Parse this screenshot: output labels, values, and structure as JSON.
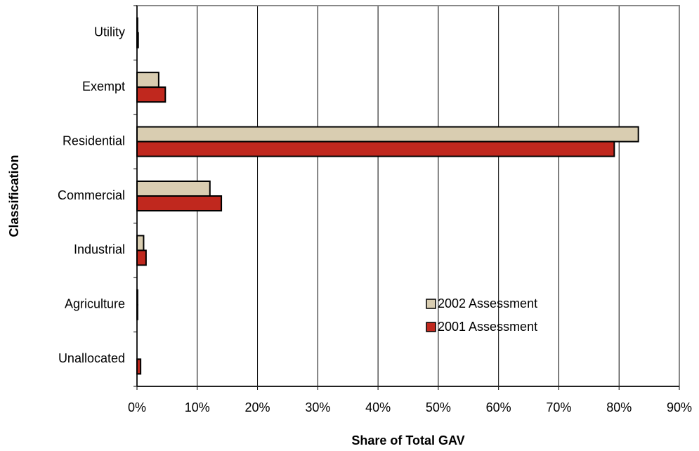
{
  "chart_data": {
    "type": "hbar",
    "x_label": "Share of Total GAV",
    "y_label": "Classification",
    "categories": [
      "Utility",
      "Exempt",
      "Residential",
      "Commercial",
      "Industrial",
      "Agriculture",
      "Unallocated"
    ],
    "series": [
      {
        "name": "2002 Assessment",
        "color": "#d9cdb1",
        "values": [
          0.1,
          3.6,
          83.2,
          12.1,
          1.1,
          0.1,
          0.0
        ]
      },
      {
        "name": "2001 Assessment",
        "color": "#c0281e",
        "values": [
          0.2,
          4.7,
          79.2,
          14.0,
          1.5,
          0.1,
          0.6
        ]
      }
    ],
    "xlim": [
      0,
      90
    ],
    "xticks": [
      {
        "value": 0,
        "label": "0%"
      },
      {
        "value": 10,
        "label": "10%"
      },
      {
        "value": 20,
        "label": "20%"
      },
      {
        "value": 30,
        "label": "30%"
      },
      {
        "value": 40,
        "label": "40%"
      },
      {
        "value": 50,
        "label": "50%"
      },
      {
        "value": 60,
        "label": "60%"
      },
      {
        "value": 70,
        "label": "70%"
      },
      {
        "value": 80,
        "label": "80%"
      },
      {
        "value": 90,
        "label": "90%"
      }
    ],
    "grid": true,
    "legend": "lower right"
  }
}
